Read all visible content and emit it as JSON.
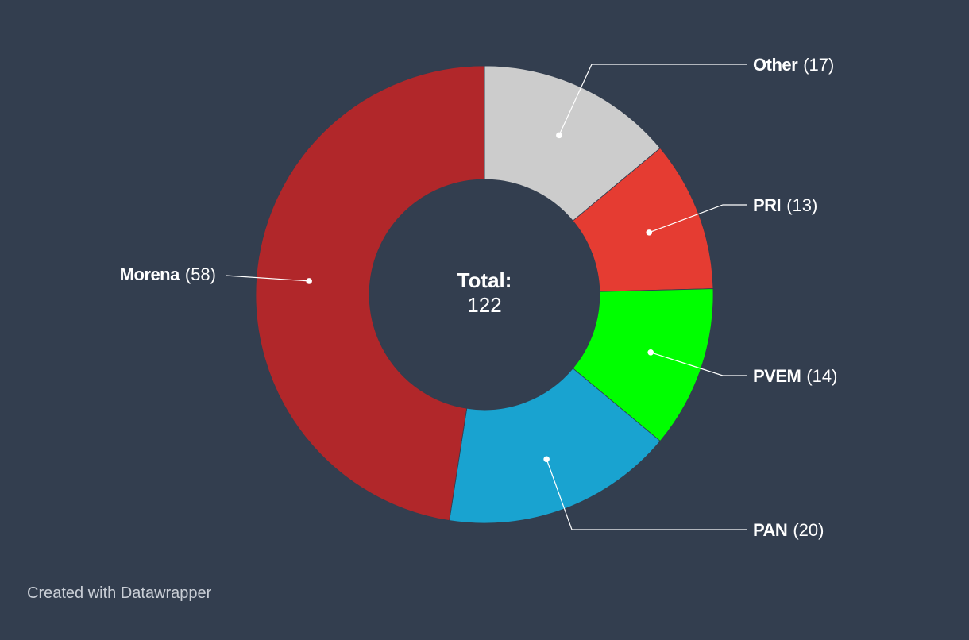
{
  "chart_data": {
    "type": "pie",
    "donut": true,
    "center_label": {
      "title": "Total:",
      "value": "122"
    },
    "slices": [
      {
        "name": "Other",
        "value": 17,
        "value_label": "(17)",
        "color": "#cccccc",
        "label_side": "right"
      },
      {
        "name": "PRI",
        "value": 13,
        "value_label": "(13)",
        "color": "#e53c32",
        "label_side": "right"
      },
      {
        "name": "PVEM",
        "value": 14,
        "value_label": "(14)",
        "color": "#00ff00",
        "label_side": "right"
      },
      {
        "name": "PAN",
        "value": 20,
        "value_label": "(20)",
        "color": "#19a3d0",
        "label_side": "right"
      },
      {
        "name": "Morena",
        "value": 58,
        "value_label": "(58)",
        "color": "#b1272a",
        "label_side": "left"
      }
    ],
    "total": 122,
    "background": "#333e4f"
  },
  "footer": {
    "credit": "Created with Datawrapper"
  }
}
